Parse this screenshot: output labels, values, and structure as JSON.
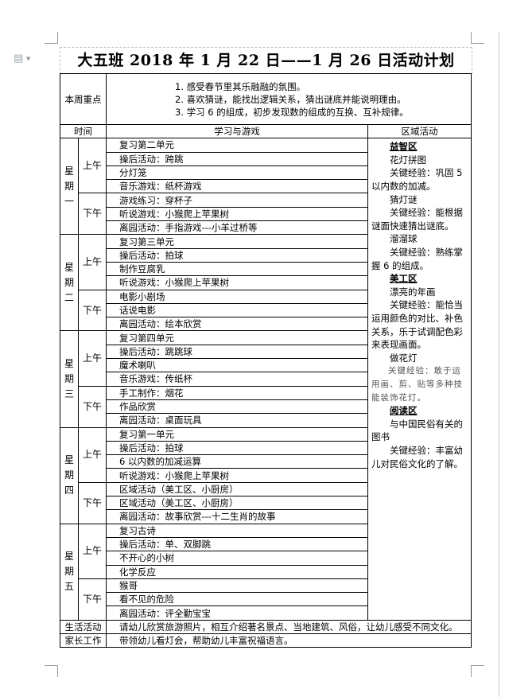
{
  "title": "大五班 2018 年 1 月 22 日——1 月 26 日活动计划",
  "focus": {
    "label": "本周重点",
    "items": [
      "1. 感受春节里其乐融融的氛围。",
      "2. 喜欢猜谜，能找出逻辑关系，猜出谜底并能说明理由。",
      "3. 学习 6 的组成，初步发现数的组成的互换、互补规律。"
    ]
  },
  "headers": {
    "time": "时间",
    "learning": "学习与游戏",
    "region": "区域活动"
  },
  "am_label": "上午",
  "pm_label": "下午",
  "days": [
    {
      "label": "星期一",
      "am": [
        "复习第二单元",
        "操后活动：跨跳",
        "分灯笼",
        "音乐游戏：纸杯游戏"
      ],
      "pm": [
        "游戏练习：穿杯子",
        "听说游戏：小猴爬上苹果树",
        "离园活动：手指游戏---小羊过桥等"
      ]
    },
    {
      "label": "星期二",
      "am": [
        "复习第三单元",
        "操后活动：拍球",
        "制作豆腐乳",
        "听说游戏：小猴爬上苹果树"
      ],
      "pm": [
        "电影小剧场",
        "话说电影",
        "离园活动：绘本欣赏"
      ]
    },
    {
      "label": "星期三",
      "am": [
        "复习第四单元",
        "操后活动：跳跳球",
        "魔术喇叭",
        "音乐游戏：传纸杯"
      ],
      "pm": [
        "手工制作：烟花",
        "作品欣赏",
        "离园活动：桌面玩具"
      ]
    },
    {
      "label": "星期四",
      "am": [
        "复习第一单元",
        "操后活动：拍球",
        "6 以内数的加减运算",
        "听说游戏：小猴爬上苹果树"
      ],
      "pm": [
        "区域活动（美工区、小厨房）",
        "区域活动（美工区、小厨房）",
        "离园活动：故事欣赏---十二生肖的故事"
      ]
    },
    {
      "label": "星期五",
      "am": [
        "复习古诗",
        "操后活动：单、双脚跳",
        "不开心的小树",
        "化学反应"
      ],
      "pm": [
        "猴哥",
        "看不见的危险",
        "离园活动：评全勤宝宝"
      ]
    }
  ],
  "region": [
    {
      "type": "heading",
      "text": "益智区"
    },
    {
      "type": "text",
      "text": "花灯拼图"
    },
    {
      "type": "text",
      "text": "关键经验：巩固 5 以内数的加减。"
    },
    {
      "type": "text",
      "text": "猜灯谜"
    },
    {
      "type": "text",
      "text": "关键经验：能根据谜面快速猜出谜底。"
    },
    {
      "type": "text",
      "text": "溜溜球"
    },
    {
      "type": "text",
      "text": "关键经验：熟练掌握 6 的组成。"
    },
    {
      "type": "heading",
      "text": "美工区"
    },
    {
      "type": "text",
      "text": "漂亮的年画"
    },
    {
      "type": "text",
      "text": "关键经验：能恰当运用颜色的对比、补色关系，乐于试调配色彩来表现画面。"
    },
    {
      "type": "text",
      "text": "做花灯"
    },
    {
      "type": "light",
      "text": "关键经验：敢于运用画、剪、贴等多种技能装饰花灯。"
    },
    {
      "type": "heading",
      "text": "阅读区"
    },
    {
      "type": "text",
      "text": "与中国民俗有关的图书"
    },
    {
      "type": "text",
      "text": "关键经验：丰富幼儿对民俗文化的了解。"
    }
  ],
  "life": {
    "label": "生活活动",
    "text": "请幼儿欣赏旅游照片，相互介绍著名景点、当地建筑、风俗，让幼儿感受不同文化。"
  },
  "parent": {
    "label": "家长工作",
    "text": "带领幼儿看灯会，帮助幼儿丰富祝福语言。"
  }
}
